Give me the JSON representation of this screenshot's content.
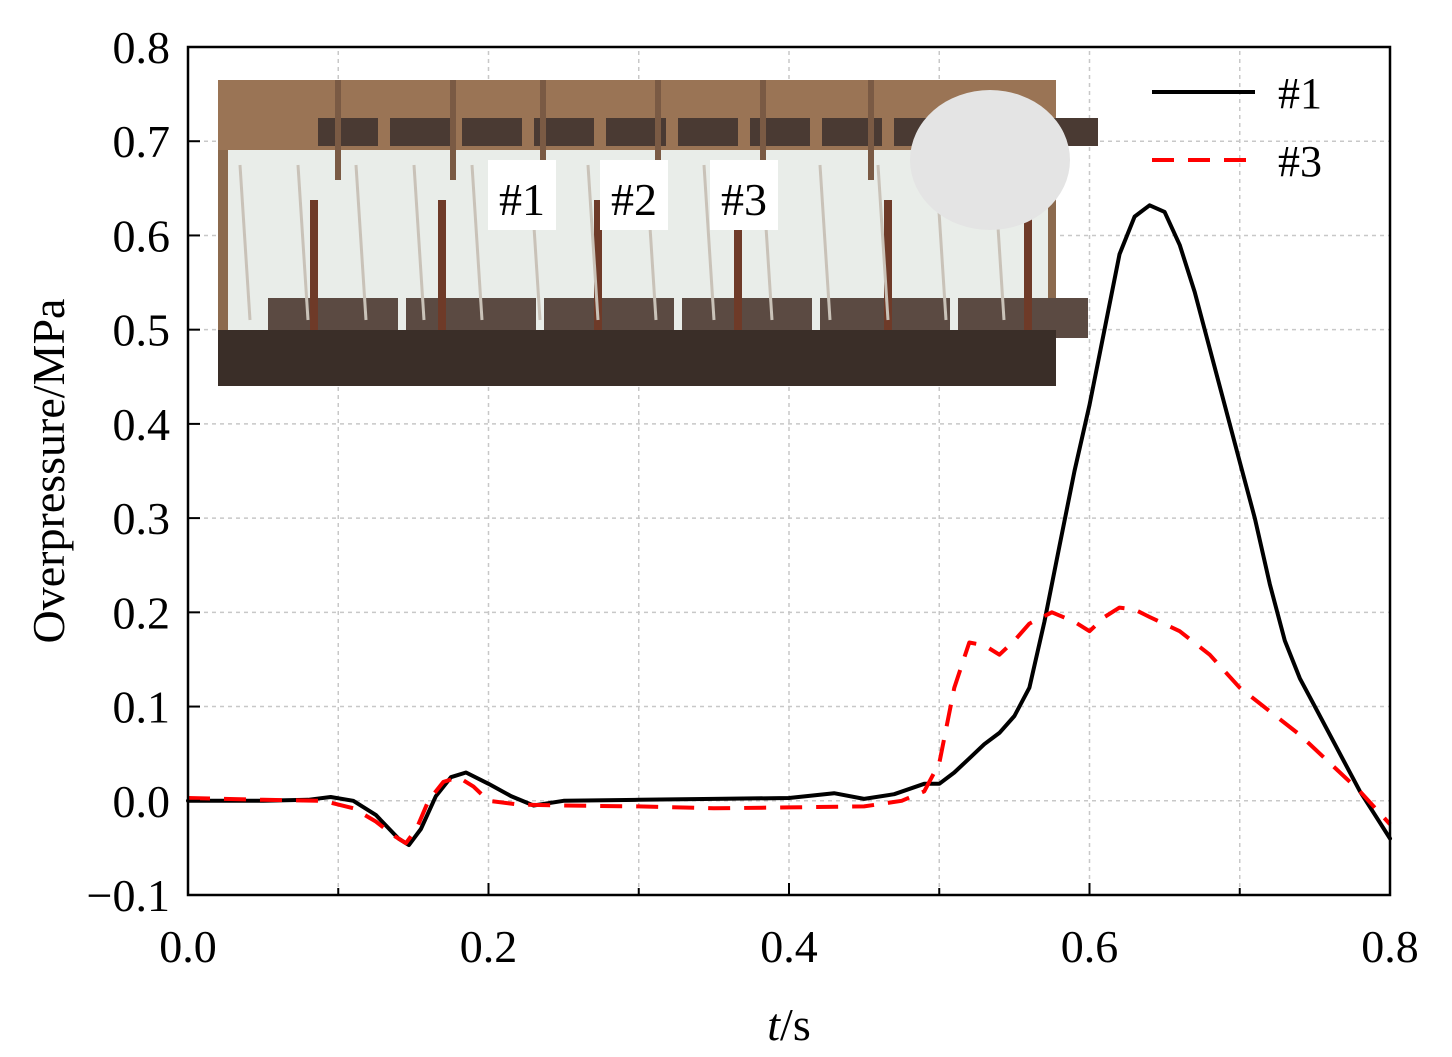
{
  "chart_data": {
    "type": "line",
    "xlabel_italic": "t",
    "xlabel_unit": "/s",
    "ylabel": "Overpressure/MPa",
    "xlim": [
      0.0,
      0.8
    ],
    "ylim": [
      -0.1,
      0.8
    ],
    "xticks": [
      "0.0",
      "0.2",
      "0.4",
      "0.6",
      "0.8"
    ],
    "xtick_values": [
      0.0,
      0.2,
      0.4,
      0.6,
      0.8
    ],
    "yticks": [
      "−0.1",
      "0.0",
      "0.1",
      "0.2",
      "0.3",
      "0.4",
      "0.5",
      "0.6",
      "0.7",
      "0.8"
    ],
    "ytick_values": [
      -0.1,
      0.0,
      0.1,
      0.2,
      0.3,
      0.4,
      0.5,
      0.6,
      0.7,
      0.8
    ],
    "grid": true,
    "legend_position": "top-right",
    "inset_photo_labels": [
      "#1",
      "#2",
      "#3"
    ],
    "series": [
      {
        "name": "#1",
        "style": "solid",
        "color": "#000000",
        "x": [
          0.0,
          0.05,
          0.08,
          0.095,
          0.11,
          0.125,
          0.14,
          0.147,
          0.155,
          0.165,
          0.175,
          0.185,
          0.2,
          0.215,
          0.23,
          0.25,
          0.3,
          0.35,
          0.4,
          0.43,
          0.45,
          0.47,
          0.49,
          0.5,
          0.51,
          0.52,
          0.53,
          0.54,
          0.55,
          0.56,
          0.57,
          0.58,
          0.59,
          0.6,
          0.61,
          0.62,
          0.63,
          0.64,
          0.65,
          0.66,
          0.67,
          0.68,
          0.69,
          0.7,
          0.71,
          0.72,
          0.73,
          0.74,
          0.75,
          0.76,
          0.77,
          0.78,
          0.79,
          0.8
        ],
        "y": [
          0.0,
          0.0,
          0.001,
          0.004,
          0.0,
          -0.015,
          -0.04,
          -0.047,
          -0.03,
          0.005,
          0.025,
          0.03,
          0.018,
          0.005,
          -0.005,
          0.0,
          0.001,
          0.002,
          0.003,
          0.008,
          0.002,
          0.007,
          0.018,
          0.018,
          0.03,
          0.045,
          0.06,
          0.072,
          0.09,
          0.12,
          0.19,
          0.27,
          0.35,
          0.42,
          0.5,
          0.58,
          0.62,
          0.632,
          0.625,
          0.59,
          0.54,
          0.48,
          0.42,
          0.36,
          0.3,
          0.23,
          0.17,
          0.13,
          0.1,
          0.07,
          0.04,
          0.01,
          -0.015,
          -0.04
        ]
      },
      {
        "name": "#3",
        "style": "dashed",
        "color": "#ff0000",
        "x": [
          0.0,
          0.05,
          0.09,
          0.11,
          0.125,
          0.138,
          0.145,
          0.152,
          0.16,
          0.17,
          0.18,
          0.19,
          0.2,
          0.22,
          0.25,
          0.3,
          0.35,
          0.4,
          0.45,
          0.475,
          0.49,
          0.5,
          0.51,
          0.52,
          0.53,
          0.54,
          0.55,
          0.56,
          0.575,
          0.59,
          0.6,
          0.61,
          0.62,
          0.63,
          0.64,
          0.66,
          0.68,
          0.7,
          0.72,
          0.74,
          0.76,
          0.78,
          0.8
        ],
        "y": [
          0.003,
          0.001,
          0.0,
          -0.008,
          -0.022,
          -0.038,
          -0.045,
          -0.03,
          0.0,
          0.02,
          0.025,
          0.015,
          0.0,
          -0.004,
          -0.005,
          -0.006,
          -0.008,
          -0.007,
          -0.006,
          0.0,
          0.01,
          0.04,
          0.12,
          0.168,
          0.165,
          0.155,
          0.17,
          0.188,
          0.2,
          0.19,
          0.18,
          0.195,
          0.205,
          0.203,
          0.195,
          0.18,
          0.155,
          0.12,
          0.095,
          0.07,
          0.04,
          0.01,
          -0.025
        ]
      }
    ]
  },
  "colors": {
    "series1": "#000000",
    "series3": "#ff0000",
    "grid": "#c8c8c8"
  }
}
